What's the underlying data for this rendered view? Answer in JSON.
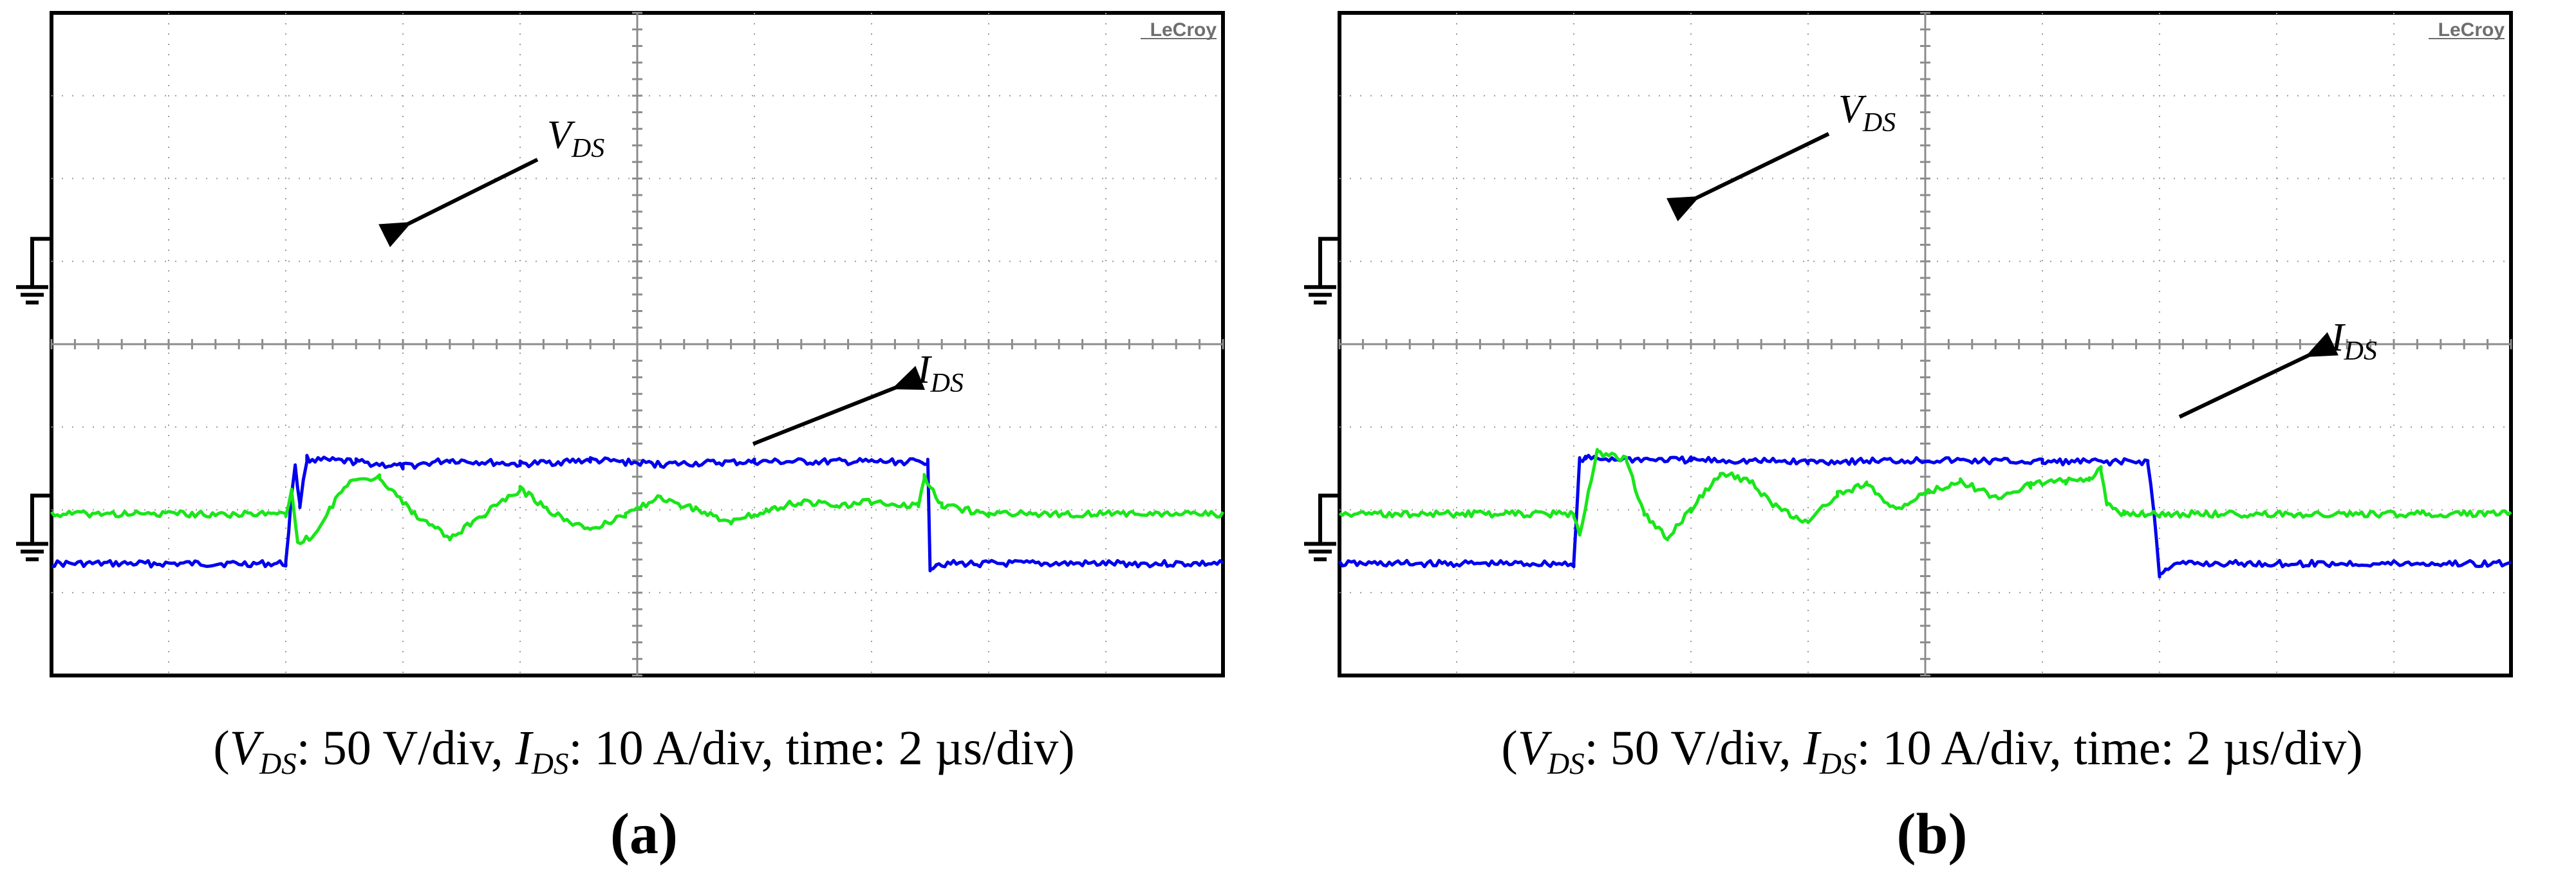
{
  "chart_data": [
    {
      "type": "line",
      "panel_label": "a",
      "brand": "LeCroy",
      "grid": true,
      "x": {
        "divisions": 10,
        "unit": "µs",
        "per_div": 2,
        "range": [
          0,
          20
        ]
      },
      "y_divisions": 8,
      "series": [
        {
          "name": "V_DS",
          "label": "V",
          "label_sub": "DS",
          "color": "#0000ee",
          "ground_div": 5.0,
          "points": [
            [
              0,
              1.35
            ],
            [
              2.0,
              1.35
            ],
            [
              2.05,
              2.2
            ],
            [
              2.08,
              2.55
            ],
            [
              2.12,
              2.05
            ],
            [
              2.18,
              2.62
            ],
            [
              2.25,
              2.6
            ],
            [
              2.6,
              2.58
            ],
            [
              3.0,
              2.52
            ],
            [
              3.4,
              2.6
            ],
            [
              4.0,
              2.55
            ],
            [
              4.6,
              2.6
            ],
            [
              5.2,
              2.55
            ],
            [
              6.0,
              2.58
            ],
            [
              7.0,
              2.58
            ],
            [
              7.48,
              2.58
            ],
            [
              7.5,
              1.3
            ],
            [
              7.55,
              1.35
            ],
            [
              10,
              1.35
            ]
          ]
        },
        {
          "name": "I_DS",
          "label": "I",
          "label_sub": "DS",
          "color": "#19e619",
          "ground_div": 1.9,
          "points": [
            [
              0,
              1.95
            ],
            [
              2.0,
              1.95
            ],
            [
              2.05,
              2.25
            ],
            [
              2.1,
              1.6
            ],
            [
              2.25,
              1.7
            ],
            [
              2.5,
              2.3
            ],
            [
              2.8,
              2.4
            ],
            [
              3.1,
              1.95
            ],
            [
              3.4,
              1.65
            ],
            [
              3.7,
              1.95
            ],
            [
              4.0,
              2.25
            ],
            [
              4.3,
              1.95
            ],
            [
              4.6,
              1.75
            ],
            [
              4.9,
              1.95
            ],
            [
              5.2,
              2.15
            ],
            [
              5.5,
              2.0
            ],
            [
              5.8,
              1.85
            ],
            [
              6.1,
              2.0
            ],
            [
              6.4,
              2.1
            ],
            [
              6.7,
              2.05
            ],
            [
              7.0,
              2.1
            ],
            [
              7.4,
              2.05
            ],
            [
              7.45,
              2.4
            ],
            [
              7.6,
              2.05
            ],
            [
              8.0,
              1.95
            ],
            [
              10,
              1.95
            ]
          ]
        }
      ],
      "annotations": [
        {
          "text": "V_DS"
        },
        {
          "text": "I_DS"
        }
      ]
    },
    {
      "type": "line",
      "panel_label": "b",
      "brand": "LeCroy",
      "grid": true,
      "x": {
        "divisions": 10,
        "unit": "µs",
        "per_div": 2,
        "range": [
          0,
          20
        ]
      },
      "y_divisions": 8,
      "series": [
        {
          "name": "V_DS",
          "label": "V",
          "label_sub": "DS",
          "color": "#0000ee",
          "ground_div": 5.0,
          "points": [
            [
              0,
              1.35
            ],
            [
              2.0,
              1.35
            ],
            [
              2.05,
              2.6
            ],
            [
              2.1,
              2.62
            ],
            [
              3.0,
              2.6
            ],
            [
              4.0,
              2.58
            ],
            [
              5.0,
              2.6
            ],
            [
              6.0,
              2.58
            ],
            [
              6.9,
              2.58
            ],
            [
              6.95,
              2.0
            ],
            [
              7.0,
              1.2
            ],
            [
              7.05,
              1.3
            ],
            [
              7.2,
              1.35
            ],
            [
              10,
              1.35
            ]
          ]
        },
        {
          "name": "I_DS",
          "label": "I",
          "label_sub": "DS",
          "color": "#19e619",
          "ground_div": 1.9,
          "points": [
            [
              0,
              1.95
            ],
            [
              2.0,
              1.95
            ],
            [
              2.05,
              1.7
            ],
            [
              2.2,
              2.7
            ],
            [
              2.45,
              2.6
            ],
            [
              2.6,
              1.95
            ],
            [
              2.8,
              1.65
            ],
            [
              3.0,
              2.0
            ],
            [
              3.25,
              2.45
            ],
            [
              3.5,
              2.35
            ],
            [
              3.75,
              2.0
            ],
            [
              4.0,
              1.85
            ],
            [
              4.25,
              2.2
            ],
            [
              4.5,
              2.3
            ],
            [
              4.75,
              2.0
            ],
            [
              5.0,
              2.2
            ],
            [
              5.3,
              2.35
            ],
            [
              5.6,
              2.15
            ],
            [
              5.9,
              2.3
            ],
            [
              6.2,
              2.35
            ],
            [
              6.4,
              2.35
            ],
            [
              6.5,
              2.5
            ],
            [
              6.55,
              2.05
            ],
            [
              6.7,
              1.95
            ],
            [
              7.0,
              1.95
            ],
            [
              10,
              1.95
            ]
          ]
        }
      ],
      "annotations": [
        {
          "text": "V_DS"
        },
        {
          "text": "I_DS"
        }
      ]
    }
  ],
  "captions": [
    {
      "v": "V",
      "v_sub": "DS",
      "v_text": ": 50 V/div, ",
      "i": "I",
      "i_sub": "DS",
      "i_text": ": 10 A/div, time: 2 µs/div)",
      "open": "(",
      "label_open": "(",
      "label": "a",
      "label_close": ")"
    },
    {
      "v": "V",
      "v_sub": "DS",
      "v_text": ": 50 V/div, ",
      "i": "I",
      "i_sub": "DS",
      "i_text": ": 10 A/div, time: 2 µs/div)",
      "open": "(",
      "label_open": "(",
      "label": "b",
      "label_close": ")"
    }
  ]
}
